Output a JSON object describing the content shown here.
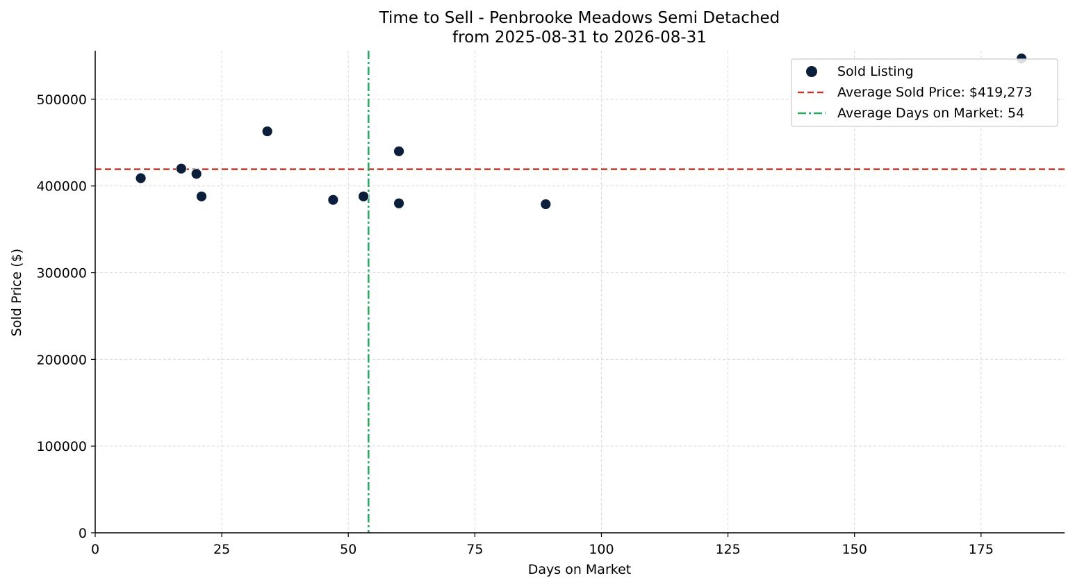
{
  "chart_data": {
    "type": "scatter",
    "title": "Time to Sell - Penbrooke Meadows Semi Detached",
    "subtitle": "from 2025-08-31 to 2026-08-31",
    "xlabel": "Days on Market",
    "ylabel": "Sold Price ($)",
    "xlim": [
      0,
      191.5
    ],
    "ylim": [
      0,
      556000
    ],
    "xticks": [
      0,
      25,
      50,
      75,
      100,
      125,
      150,
      175
    ],
    "yticks": [
      0,
      100000,
      200000,
      300000,
      400000,
      500000
    ],
    "grid": true,
    "legend_position": "top-right",
    "series": [
      {
        "name": "Sold Listing",
        "kind": "scatter",
        "color": "#0b1f3a",
        "points": [
          {
            "x": 9,
            "y": 409000
          },
          {
            "x": 17,
            "y": 420000
          },
          {
            "x": 20,
            "y": 414000
          },
          {
            "x": 21,
            "y": 388000
          },
          {
            "x": 34,
            "y": 463000
          },
          {
            "x": 47,
            "y": 384000
          },
          {
            "x": 53,
            "y": 388000
          },
          {
            "x": 60,
            "y": 440000
          },
          {
            "x": 60,
            "y": 380000
          },
          {
            "x": 89,
            "y": 379000
          },
          {
            "x": 183,
            "y": 547000
          }
        ]
      }
    ],
    "reference_lines": [
      {
        "name": "Average Sold Price: $419,273",
        "orientation": "horizontal",
        "value": 419273,
        "style": "dashed",
        "color": "#c0392b"
      },
      {
        "name": "Average Days on Market: 54",
        "orientation": "vertical",
        "value": 54,
        "style": "dashdot",
        "color": "#27a85f"
      }
    ]
  }
}
